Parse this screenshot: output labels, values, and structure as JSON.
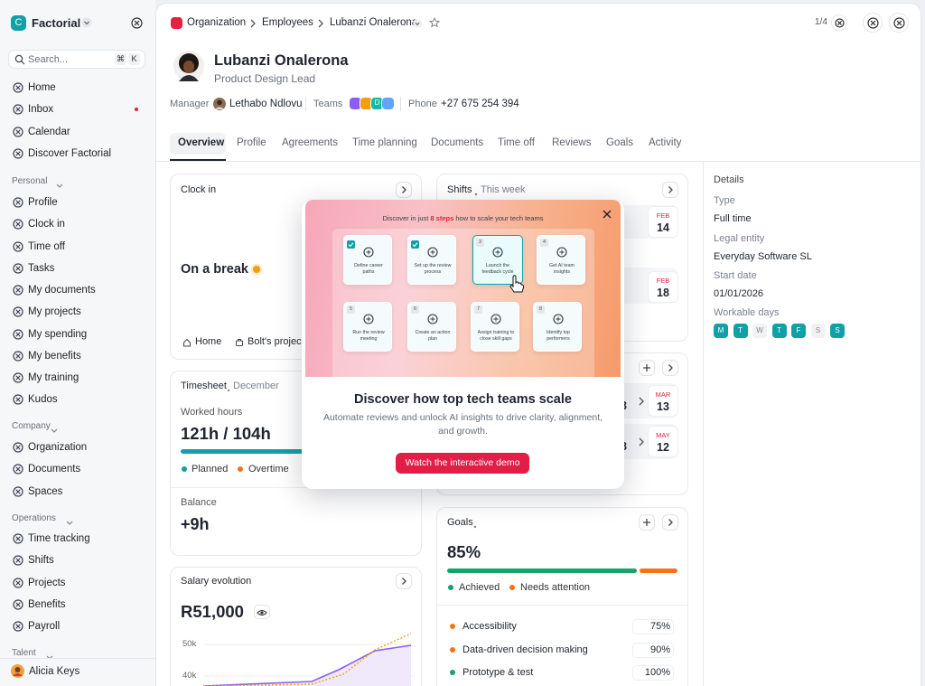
{
  "sidebar": {
    "brand_initial": "C",
    "brand": "Factorial",
    "search_placeholder": "Search...",
    "shortcut": [
      "⌘",
      "K"
    ],
    "main_nav": [
      "Home",
      "Inbox",
      "Calendar",
      "Discover Factorial"
    ],
    "sections": [
      {
        "title": "Personal",
        "items": [
          "Profile",
          "Clock in",
          "Time off",
          "Tasks",
          "My documents",
          "My projects",
          "My spending",
          "My benefits",
          "My training",
          "Kudos"
        ]
      },
      {
        "title": "Company",
        "items": [
          "Organization",
          "Documents",
          "Spaces"
        ]
      },
      {
        "title": "Operations",
        "items": [
          "Time tracking",
          "Shifts",
          "Projects",
          "Benefits",
          "Payroll"
        ]
      },
      {
        "title": "Talent",
        "items": []
      }
    ],
    "user": "Alicia Keys"
  },
  "header": {
    "breadcrumb": [
      "Organization",
      "Employees",
      "Lubanzi Onalerona"
    ],
    "pager": "1/4"
  },
  "profile": {
    "name": "Lubanzi Onalerona",
    "role": "Product Design Lead",
    "manager_label": "Manager",
    "manager": "Lethabo Ndlovu",
    "teams_label": "Teams",
    "team_letter": "D",
    "phone_label": "Phone",
    "phone": "+27 675 254 394"
  },
  "tabs": {
    "items": [
      "Overview",
      "Profile",
      "Agreements",
      "Time planning",
      "Documents",
      "Time off",
      "Reviews",
      "Goals",
      "Activity"
    ],
    "active": 0
  },
  "clock_in": {
    "title": "Clock in",
    "status": "On a break",
    "locations": [
      "Home",
      "Bolt's project"
    ]
  },
  "timesheet": {
    "title": "Timesheet",
    "period": "December",
    "label": "Worked hours",
    "value": "121h / 104h",
    "legend": [
      "Planned",
      "Overtime"
    ],
    "balance_label": "Balance",
    "balance": "+9h"
  },
  "salary": {
    "title": "Salary evolution",
    "value": "R51,000",
    "axis_labels": [
      "50k",
      "40k"
    ]
  },
  "shifts": {
    "title": "Shifts",
    "subtitle": "This week",
    "dates": [
      {
        "month": "FEB",
        "day": "14"
      },
      {
        "month": "FEB",
        "day": "18"
      }
    ]
  },
  "periods": {
    "rows": [
      {
        "from_day": "3",
        "to": {
          "month": "MAR",
          "day": "13"
        }
      },
      {
        "from_day": "8",
        "to": {
          "month": "MAY",
          "day": "12"
        }
      }
    ]
  },
  "goals": {
    "title": "Goals",
    "percent": "85%",
    "legend": [
      "Achieved",
      "Needs attention"
    ],
    "items": [
      {
        "name": "Accessibility",
        "value": "75%"
      },
      {
        "name": "Data-driven decision making",
        "value": "90%"
      },
      {
        "name": "Prototype & test",
        "value": "100%"
      }
    ]
  },
  "details": {
    "title": "Details",
    "fields": [
      {
        "label": "Type",
        "value": "Full time"
      },
      {
        "label": "Legal entity",
        "value": "Everyday Software SL"
      },
      {
        "label": "Start date",
        "value": "01/01/2026"
      }
    ],
    "workable_label": "Workable days",
    "days": [
      "M",
      "T",
      "W",
      "T",
      "F",
      "S",
      "S"
    ],
    "active": [
      true,
      true,
      false,
      true,
      true,
      false,
      true
    ]
  },
  "modal": {
    "banner_heading": [
      "Discover in just ",
      "8 steps",
      " how to scale your tech teams"
    ],
    "steps": [
      {
        "done": true,
        "label": "Define career paths"
      },
      {
        "done": true,
        "label": "Set up the review process"
      },
      {
        "number": "3",
        "label": "Launch the feedback cycle"
      },
      {
        "number": "4",
        "label": "Get AI team insights"
      },
      {
        "number": "5",
        "label": "Run the review meeting"
      },
      {
        "number": "6",
        "label": "Create an action plan"
      },
      {
        "number": "7",
        "label": "Assign training to close skill gaps"
      },
      {
        "number": "8",
        "label": "Identify top performers"
      }
    ],
    "title": "Discover how top tech teams scale",
    "text": "Automate reviews and unlock AI insights to drive clarity, alignment, and growth.",
    "button": "Watch the interactive demo"
  }
}
